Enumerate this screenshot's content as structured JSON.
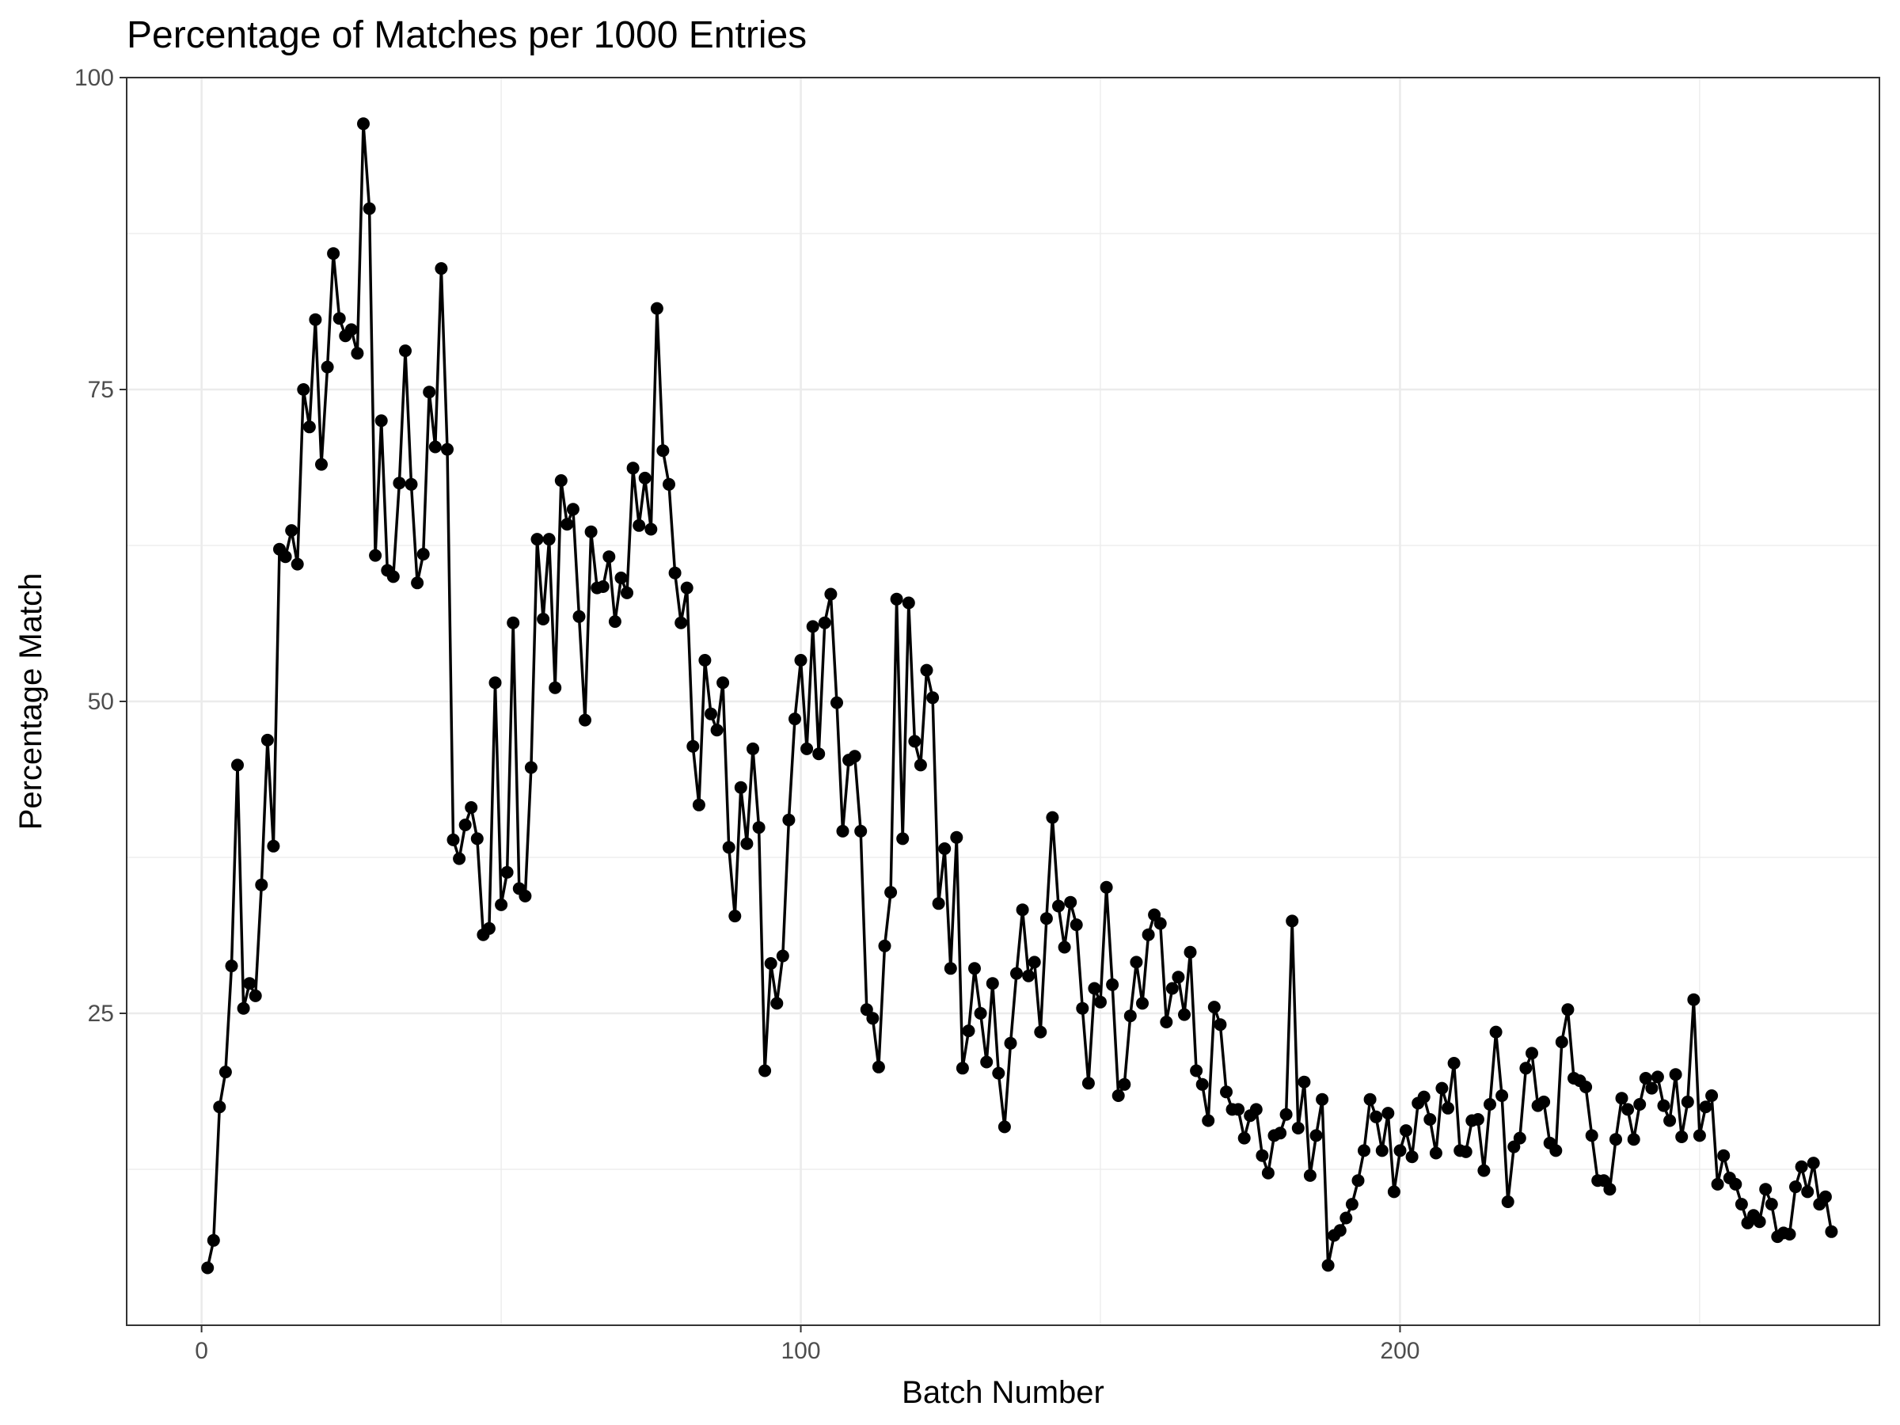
{
  "chart_data": {
    "type": "line",
    "title": "Percentage of Matches per 1000 Entries",
    "xlabel": "Batch Number",
    "ylabel": "Percentage Match",
    "xlim": [
      -12.5,
      280
    ],
    "ylim": [
      0,
      100
    ],
    "x_ticks": [
      0,
      100,
      200
    ],
    "x_tick_labels": [
      "0",
      "100",
      "200"
    ],
    "y_ticks": [
      25,
      50,
      75,
      100
    ],
    "y_tick_labels": [
      "25",
      "50",
      "75",
      "100"
    ],
    "x_minor_ticks": [
      50,
      150,
      250
    ],
    "y_minor_ticks": [
      12.5,
      37.5,
      62.5,
      87.5
    ],
    "grid": true,
    "legend": "none",
    "colors": {
      "line": "#000000",
      "point": "#000000",
      "grid": "#ebebeb",
      "border": "#333333"
    },
    "series": [
      {
        "x": [
          1,
          2,
          3,
          4,
          5,
          6,
          7,
          8,
          9,
          10,
          11,
          12,
          13,
          14,
          15,
          16,
          17,
          18,
          19,
          20,
          21,
          22,
          23,
          24,
          25,
          26,
          27,
          28,
          29,
          30,
          31,
          32,
          33,
          34,
          35,
          36,
          37,
          38,
          39,
          40,
          41,
          42,
          43,
          44,
          45,
          46,
          47,
          48,
          49,
          50,
          51,
          52,
          53,
          54,
          55,
          56,
          57,
          58,
          59,
          60,
          61,
          62,
          63,
          64,
          65,
          66,
          67,
          68,
          69,
          70,
          71,
          72,
          73,
          74,
          75,
          76,
          77,
          78,
          79,
          80,
          81,
          82,
          83,
          84,
          85,
          86,
          87,
          88,
          89,
          90,
          91,
          92,
          93,
          94,
          95,
          96,
          97,
          98,
          99,
          100,
          101,
          102,
          103,
          104,
          105,
          106,
          107,
          108,
          109,
          110,
          111,
          112,
          113,
          114,
          115,
          116,
          117,
          118,
          119,
          120,
          121,
          122,
          123,
          124,
          125,
          126,
          127,
          128,
          129,
          130,
          131,
          132,
          133,
          134,
          135,
          136,
          137,
          138,
          139,
          140,
          141,
          142,
          143,
          144,
          145,
          146,
          147,
          148,
          149,
          150,
          151,
          152,
          153,
          154,
          155,
          156,
          157,
          158,
          159,
          160,
          161,
          162,
          163,
          164,
          165,
          166,
          167,
          168,
          169,
          170,
          171,
          172,
          173,
          174,
          175,
          176,
          177,
          178,
          179,
          180,
          181,
          182,
          183,
          184,
          185,
          186,
          187,
          188,
          189,
          190,
          191,
          192,
          193,
          194,
          195,
          196,
          197,
          198,
          199,
          200,
          201,
          202,
          203,
          204,
          205,
          206,
          207,
          208,
          209,
          210,
          211,
          212,
          213,
          214,
          215,
          216,
          217,
          218,
          219,
          220,
          221,
          222,
          223,
          224,
          225,
          226,
          227,
          228,
          229,
          230,
          231,
          232,
          233,
          234,
          235,
          236,
          237,
          238,
          239,
          240,
          241,
          242,
          243,
          244,
          245,
          246,
          247,
          248,
          249,
          250,
          251,
          252,
          253,
          254,
          255,
          256,
          257,
          258,
          259,
          260,
          261,
          262,
          263,
          264,
          265,
          266,
          267,
          268,
          269,
          270,
          271,
          272
        ],
        "y": [
          4.6,
          6.8,
          17.5,
          20.3,
          28.8,
          44.9,
          25.4,
          27.4,
          26.4,
          35.3,
          46.9,
          38.4,
          62.2,
          61.6,
          63.7,
          61.0,
          75.0,
          72.0,
          80.6,
          69.0,
          76.8,
          85.9,
          80.7,
          79.3,
          79.8,
          77.9,
          96.3,
          89.5,
          61.7,
          72.5,
          60.5,
          60.0,
          67.5,
          78.1,
          67.4,
          59.5,
          61.8,
          74.8,
          70.4,
          84.7,
          70.2,
          38.9,
          37.4,
          40.1,
          41.5,
          39.0,
          31.3,
          31.8,
          51.5,
          33.7,
          36.3,
          56.3,
          35.0,
          34.4,
          44.7,
          63.0,
          56.6,
          63.0,
          51.1,
          67.7,
          64.2,
          65.4,
          56.8,
          48.5,
          63.6,
          59.1,
          59.2,
          61.6,
          56.4,
          59.9,
          58.7,
          68.7,
          64.1,
          67.9,
          63.8,
          81.5,
          70.1,
          67.4,
          60.3,
          56.3,
          59.1,
          46.4,
          41.7,
          53.3,
          49.0,
          47.7,
          51.5,
          38.3,
          32.8,
          43.1,
          38.6,
          46.2,
          39.9,
          20.4,
          29.0,
          25.8,
          29.6,
          40.5,
          48.6,
          53.3,
          46.2,
          56.0,
          45.8,
          56.3,
          58.6,
          49.9,
          39.6,
          45.3,
          45.6,
          39.6,
          25.3,
          24.6,
          20.7,
          30.4,
          34.7,
          58.2,
          39.0,
          57.9,
          46.8,
          44.9,
          52.5,
          50.3,
          33.8,
          38.2,
          28.6,
          39.1,
          20.6,
          23.6,
          28.6,
          25.0,
          21.1,
          27.4,
          20.2,
          15.9,
          22.6,
          28.2,
          33.3,
          28.0,
          29.1,
          23.5,
          32.6,
          40.7,
          33.6,
          30.3,
          33.9,
          32.1,
          25.4,
          19.4,
          27.0,
          25.9,
          35.1,
          27.3,
          18.4,
          19.3,
          24.8,
          29.1,
          25.8,
          31.3,
          32.9,
          32.2,
          24.3,
          27.0,
          27.9,
          24.9,
          29.9,
          20.4,
          19.3,
          16.4,
          25.5,
          24.1,
          18.7,
          17.3,
          17.3,
          15.0,
          16.8,
          17.3,
          13.6,
          12.2,
          15.2,
          15.4,
          16.9,
          32.4,
          15.8,
          19.5,
          12.0,
          15.2,
          18.1,
          4.8,
          7.2,
          7.6,
          8.6,
          9.7,
          11.6,
          14.0,
          18.1,
          16.7,
          14.0,
          17.0,
          10.7,
          14.0,
          15.6,
          13.5,
          17.8,
          18.3,
          16.5,
          13.8,
          19.0,
          17.4,
          21.0,
          14.0,
          13.9,
          16.4,
          16.5,
          12.4,
          17.7,
          23.5,
          18.4,
          9.9,
          14.3,
          15.0,
          20.6,
          21.8,
          17.6,
          17.9,
          14.6,
          14.0,
          22.7,
          25.3,
          19.8,
          19.6,
          19.1,
          15.2,
          11.6,
          11.6,
          10.9,
          14.9,
          18.2,
          17.3,
          14.9,
          17.7,
          19.8,
          19.0,
          19.9,
          17.6,
          16.4,
          20.1,
          15.1,
          17.9,
          26.1,
          15.2,
          17.5,
          18.4,
          11.3,
          13.6,
          11.8,
          11.3,
          9.7,
          8.2,
          8.8,
          8.3,
          10.9,
          9.7,
          7.1,
          7.4,
          7.3,
          11.1,
          12.7,
          10.7,
          13.0,
          9.7,
          10.3,
          7.5
        ]
      }
    ]
  }
}
